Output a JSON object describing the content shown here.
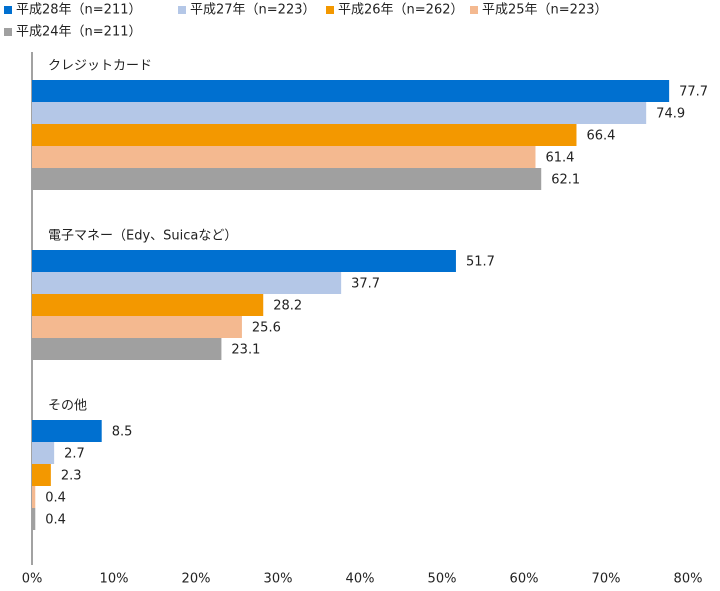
{
  "chart_data": {
    "type": "hbar",
    "categories": [
      "クレジットカード",
      "電子マネー（Edy、Suicaなど）",
      "その他"
    ],
    "series": [
      {
        "name": "平成28年（n=211）",
        "color": "#0070d0",
        "values": [
          77.7,
          51.7,
          8.5
        ]
      },
      {
        "name": "平成27年（n=223）",
        "color": "#b4c7e7",
        "values": [
          74.9,
          37.7,
          2.7
        ]
      },
      {
        "name": "平成26年（n=262）",
        "color": "#f39800",
        "values": [
          66.4,
          28.2,
          2.3
        ]
      },
      {
        "name": "平成25年（n=223）",
        "color": "#f4b990",
        "values": [
          61.4,
          25.6,
          0.4
        ]
      },
      {
        "name": "平成24年（n=211）",
        "color": "#a0a0a0",
        "values": [
          62.1,
          23.1,
          0.4
        ]
      }
    ],
    "xlim": [
      0,
      80
    ],
    "xticks": [
      {
        "value": 0,
        "label": "0%"
      },
      {
        "value": 10,
        "label": "10%"
      },
      {
        "value": 20,
        "label": "20%"
      },
      {
        "value": 30,
        "label": "30%"
      },
      {
        "value": 40,
        "label": "40%"
      },
      {
        "value": 50,
        "label": "50%"
      },
      {
        "value": 60,
        "label": "60%"
      },
      {
        "value": 70,
        "label": "70%"
      },
      {
        "value": 80,
        "label": "80%"
      }
    ],
    "legend": "top"
  }
}
